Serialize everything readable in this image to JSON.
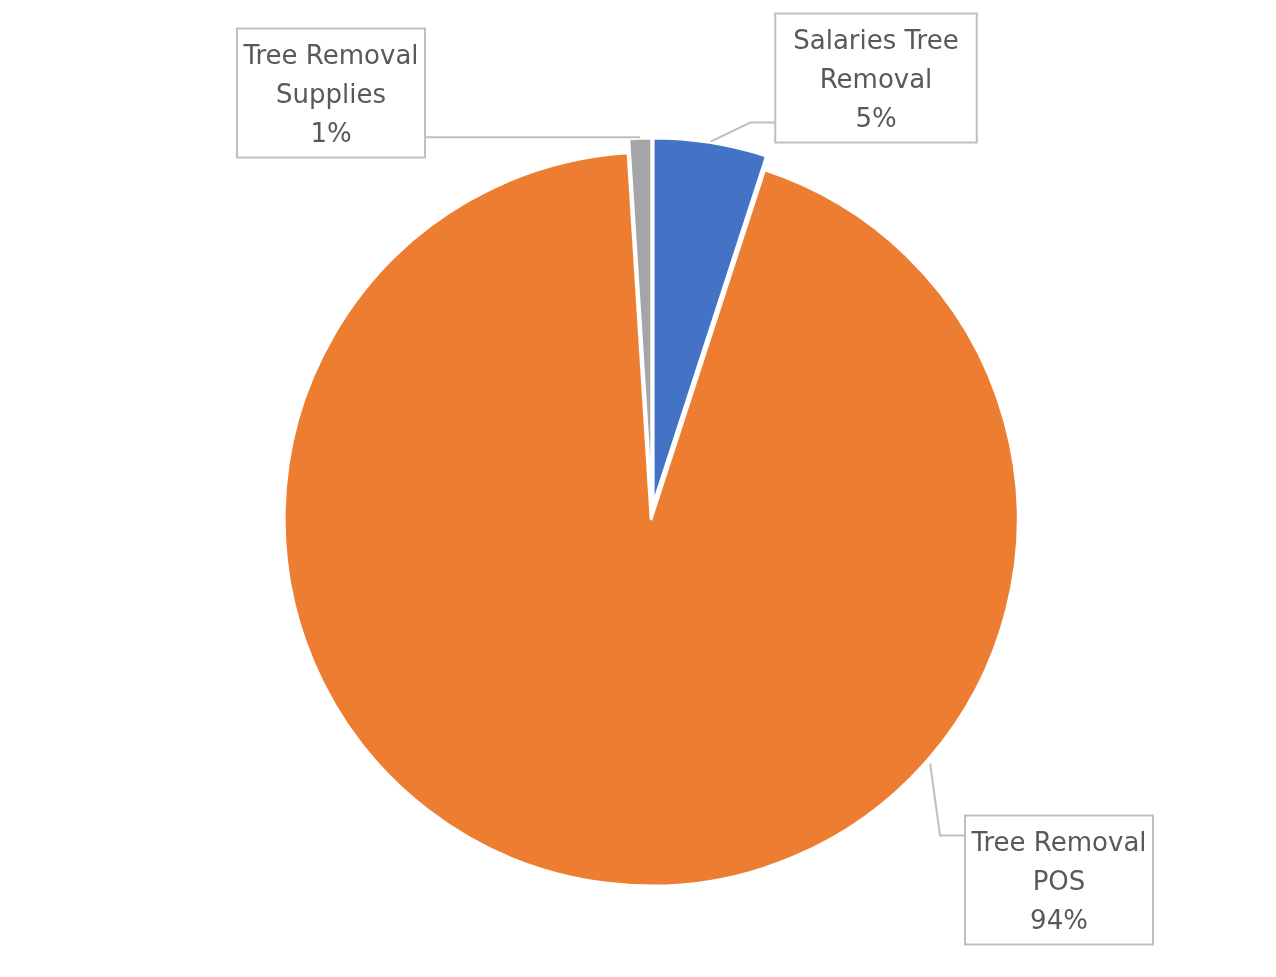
{
  "chart_data": {
    "type": "pie",
    "categories": [
      "Salaries Tree Removal",
      "Tree Removal POS",
      "Tree Removal Supplies"
    ],
    "values": [
      5,
      94,
      1
    ],
    "colors": [
      "#4472c4",
      "#ed7d31",
      "#a5a5a5"
    ],
    "value_labels": [
      "5%",
      "94%",
      "1%"
    ]
  }
}
